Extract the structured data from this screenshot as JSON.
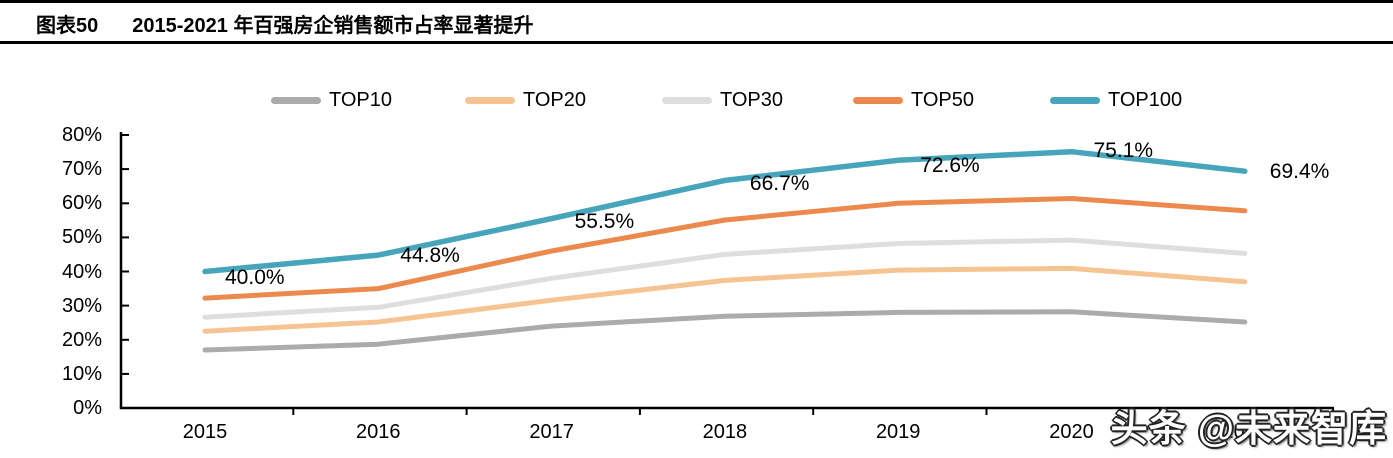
{
  "title": {
    "prefix": "图表50",
    "text": "2015-2021 年百强房企销售额市占率显著提升"
  },
  "watermark": "头条 @未来智库",
  "colors": {
    "axis": "#000000",
    "top10": "#ABABAB",
    "top20": "#F6C493",
    "top30": "#DEDEDE",
    "top50": "#EC8A4E",
    "top100": "#46A5BB"
  },
  "chart_data": {
    "type": "line",
    "title": "2015-2021 年百强房企销售额市占率显著提升",
    "x": [
      2015,
      2016,
      2017,
      2018,
      2019,
      2020,
      2021
    ],
    "xlabel": "",
    "ylabel": "",
    "ylim": [
      0,
      80
    ],
    "grid": false,
    "legend_position": "top",
    "yticks": [
      "80%",
      "70%",
      "60%",
      "50%",
      "40%",
      "30%",
      "20%",
      "10%",
      "0%"
    ],
    "xticks": [
      "2015",
      "2016",
      "2017",
      "2018",
      "2019",
      "2020",
      "2021"
    ],
    "series": [
      {
        "name": "TOP10",
        "color": "#ABABAB",
        "values": [
          17.0,
          18.7,
          24.0,
          26.9,
          28.0,
          28.2,
          25.2
        ]
      },
      {
        "name": "TOP20",
        "color": "#F6C493",
        "values": [
          22.5,
          25.2,
          31.6,
          37.4,
          40.4,
          40.9,
          37.0
        ]
      },
      {
        "name": "TOP30",
        "color": "#DEDEDE",
        "values": [
          26.6,
          29.5,
          38.0,
          45.0,
          48.2,
          49.2,
          45.3
        ]
      },
      {
        "name": "TOP50",
        "color": "#EC8A4E",
        "values": [
          32.2,
          35.0,
          46.0,
          55.1,
          60.0,
          61.4,
          57.8
        ]
      },
      {
        "name": "TOP100",
        "color": "#46A5BB",
        "values": [
          40.0,
          44.8,
          55.5,
          66.7,
          72.6,
          75.1,
          69.4
        ]
      }
    ],
    "labeled_series": "TOP100",
    "point_labels": [
      "40.0%",
      "44.8%",
      "55.5%",
      "66.7%",
      "72.6%",
      "75.1%",
      "69.4%"
    ]
  }
}
